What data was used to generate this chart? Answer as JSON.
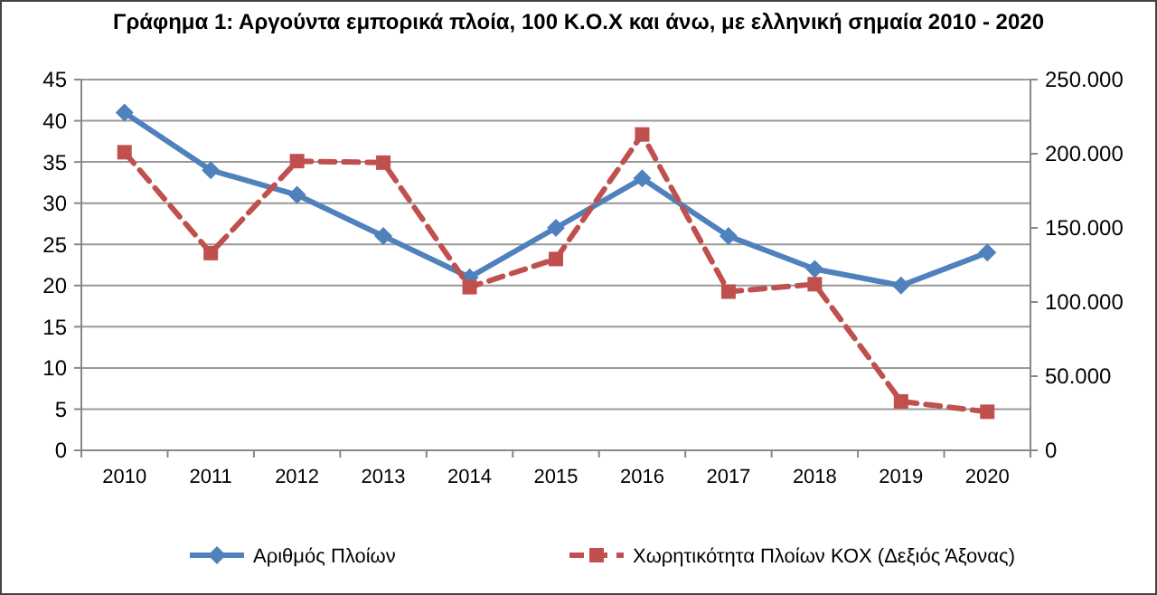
{
  "chart_data": {
    "type": "line",
    "title": "Γράφημα 1: Αργούντα  εμπορικά πλοία, 100 Κ.Ο.Χ και άνω, με ελληνική σημαία 2010 - 2020",
    "categories": [
      "2010",
      "2011",
      "2012",
      "2013",
      "2014",
      "2015",
      "2016",
      "2017",
      "2018",
      "2019",
      "2020"
    ],
    "series": [
      {
        "name": "Αριθμός  Πλοίων",
        "color": "#4f81bd",
        "values": [
          41,
          34,
          31,
          26,
          21,
          27,
          33,
          26,
          22,
          20,
          24
        ],
        "marker": "diamond",
        "line_style": "solid"
      },
      {
        "name": "Χωρητικότητα Πλοίων ΚΟΧ (Δεξιός Άξονας)",
        "color": "#c0504d",
        "values": [
          201000,
          133000,
          195000,
          194000,
          110000,
          129000,
          213000,
          107000,
          112000,
          33000,
          26000
        ],
        "axis": "y2",
        "marker": "square",
        "line_style": "dashed"
      }
    ],
    "ylim": [
      0,
      45
    ],
    "yticks": [
      0,
      5,
      10,
      15,
      20,
      25,
      30,
      35,
      40,
      45
    ],
    "y2lim": [
      0,
      250000
    ],
    "y2ticks": [
      {
        "value": 0,
        "label": "0"
      },
      {
        "value": 50000,
        "label": "50.000"
      },
      {
        "value": 100000,
        "label": "100.000"
      },
      {
        "value": 150000,
        "label": "150.000"
      },
      {
        "value": 200000,
        "label": "200.000"
      },
      {
        "value": 250000,
        "label": "250.000"
      }
    ],
    "grid": "y",
    "legend": "bottom"
  }
}
